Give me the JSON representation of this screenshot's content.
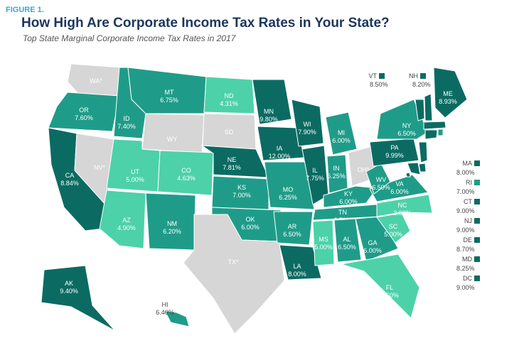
{
  "figure_label": "FIGURE 1.",
  "title": "How High Are Corporate Income Tax Rates in Your State?",
  "subtitle": "Top State Marginal Corporate Income Tax Rates in 2017",
  "states": [
    {
      "label": "WA*",
      "color": "#d6d6d6"
    },
    {
      "label": "OR",
      "rate": "7.60%",
      "color": "#1f9c89"
    },
    {
      "label": "CA",
      "rate": "8.84%",
      "color": "#0b6b63"
    },
    {
      "label": "NV*",
      "color": "#d6d6d6"
    },
    {
      "label": "ID",
      "rate": "7.40%",
      "color": "#1f9c89"
    },
    {
      "label": "MT",
      "rate": "6.75%",
      "color": "#1f9c89"
    },
    {
      "label": "WY",
      "color": "#d6d6d6"
    },
    {
      "label": "UT",
      "rate": "5.00%",
      "color": "#4dd1a9"
    },
    {
      "label": "AZ",
      "rate": "4.90%",
      "color": "#4dd1a9"
    },
    {
      "label": "CO",
      "rate": "4.63%",
      "color": "#4dd1a9"
    },
    {
      "label": "NM",
      "rate": "6.20%",
      "color": "#1f9c89"
    },
    {
      "label": "ND",
      "rate": "4.31%",
      "color": "#4dd1a9"
    },
    {
      "label": "SD",
      "color": "#d6d6d6"
    },
    {
      "label": "NE",
      "rate": "7.81%",
      "color": "#0b6b63"
    },
    {
      "label": "KS",
      "rate": "7.00%",
      "color": "#1f9c89"
    },
    {
      "label": "OK",
      "rate": "6.00%",
      "color": "#1f9c89"
    },
    {
      "label": "TX*",
      "color": "#d6d6d6"
    },
    {
      "label": "MN",
      "rate": "9.80%",
      "color": "#0b6b63"
    },
    {
      "label": "IA",
      "rate": "12.00%",
      "color": "#0b6b63"
    },
    {
      "label": "MO",
      "rate": "6.25%",
      "color": "#1f9c89"
    },
    {
      "label": "AR",
      "rate": "6.50%",
      "color": "#1f9c89"
    },
    {
      "label": "LA",
      "rate": "8.00%",
      "color": "#0b6b63"
    },
    {
      "label": "WI",
      "rate": "7.90%",
      "color": "#0b6b63"
    },
    {
      "label": "IL",
      "rate": "7.75%",
      "color": "#0b6b63"
    },
    {
      "label": "MI",
      "rate": "6.00%",
      "color": "#1f9c89"
    },
    {
      "label": "IN",
      "rate": "6.25%",
      "color": "#1f9c89"
    },
    {
      "label": "OH*",
      "color": "#d6d6d6"
    },
    {
      "label": "KY",
      "rate": "6.00%",
      "color": "#1f9c89"
    },
    {
      "label": "TN",
      "rate": "6.50%",
      "color": "#1f9c89"
    },
    {
      "label": "MS",
      "rate": "5.00%",
      "color": "#4dd1a9"
    },
    {
      "label": "AL",
      "rate": "6.50%",
      "color": "#1f9c89"
    },
    {
      "label": "GA",
      "rate": "6.00%",
      "color": "#1f9c89"
    },
    {
      "label": "FL",
      "rate": "5.50%",
      "color": "#4dd1a9"
    },
    {
      "label": "SC",
      "rate": "5.00%",
      "color": "#4dd1a9"
    },
    {
      "label": "NC",
      "rate": "3.00%",
      "color": "#4dd1a9"
    },
    {
      "label": "VA",
      "rate": "6.00%",
      "color": "#1f9c89"
    },
    {
      "label": "WV",
      "rate": "6.50%",
      "color": "#1f9c89"
    },
    {
      "label": "PA",
      "rate": "9.99%",
      "color": "#0b6b63"
    },
    {
      "label": "NY",
      "rate": "6.50%",
      "color": "#1f9c89"
    },
    {
      "label": "ME",
      "rate": "8.93%",
      "color": "#0b6b63"
    },
    {
      "label": "VT",
      "rate": "8.50%",
      "color": "#0b6b63"
    },
    {
      "label": "NH",
      "rate": "8.20%",
      "color": "#0b6b63"
    },
    {
      "label": "MA",
      "rate": "8.00%",
      "color": "#0b6b63"
    },
    {
      "label": "RI",
      "rate": "7.00%",
      "color": "#1f9c89"
    },
    {
      "label": "CT",
      "rate": "9.00%",
      "color": "#0b6b63"
    },
    {
      "label": "NJ",
      "rate": "9.00%",
      "color": "#0b6b63"
    },
    {
      "label": "DE",
      "rate": "8.70%",
      "color": "#0b6b63"
    },
    {
      "label": "MD",
      "rate": "8.25%",
      "color": "#0b6b63"
    },
    {
      "label": "DC",
      "rate": "9.00%",
      "color": "#0b6b63"
    },
    {
      "label": "AK",
      "rate": "9.40%",
      "color": "#0b6b63"
    },
    {
      "label": "HI",
      "rate": "6.40%",
      "color": "#1f9c89"
    }
  ]
}
